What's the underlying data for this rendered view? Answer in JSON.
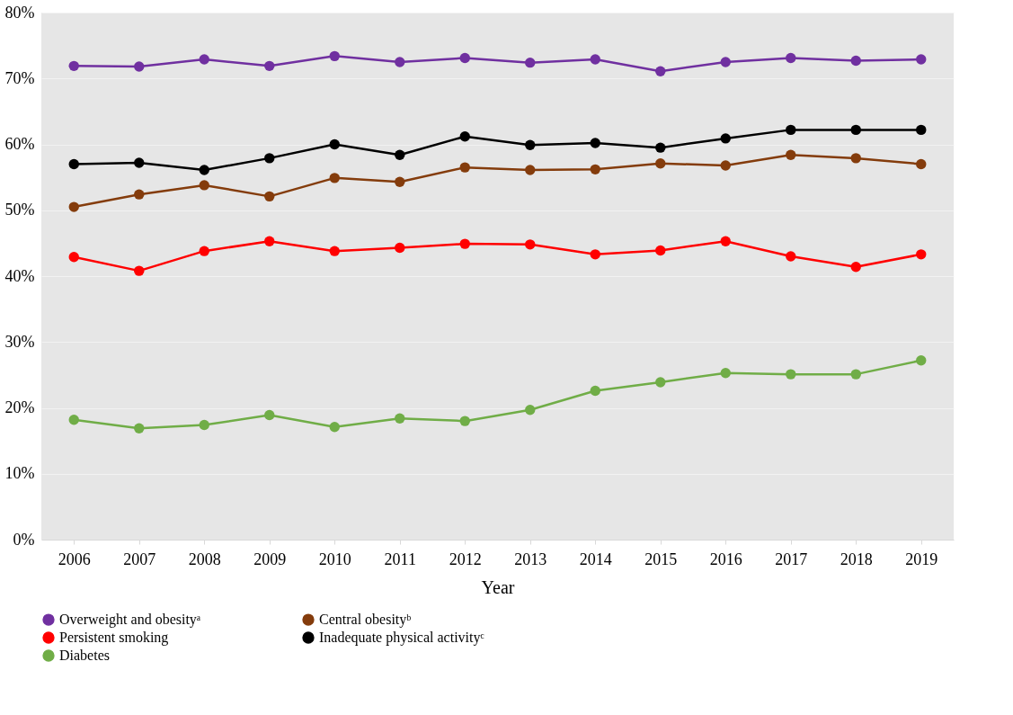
{
  "chart_data": {
    "type": "line",
    "xlabel": "Year",
    "categories": [
      "2006",
      "2007",
      "2008",
      "2009",
      "2010",
      "2011",
      "2012",
      "2013",
      "2014",
      "2015",
      "2016",
      "2017",
      "2018",
      "2019"
    ],
    "series": [
      {
        "name": "Overweight and obesityᵃ",
        "color": "#7030a0",
        "values": [
          71.9,
          71.8,
          72.9,
          71.9,
          73.4,
          72.5,
          73.1,
          72.4,
          72.9,
          71.1,
          72.5,
          73.1,
          72.7,
          72.9
        ]
      },
      {
        "name": "Central obesityᵇ",
        "color": "#843c0c",
        "values": [
          50.5,
          52.4,
          53.8,
          52.1,
          54.9,
          54.3,
          56.5,
          56.1,
          56.2,
          57.1,
          56.8,
          58.4,
          57.9,
          57.0
        ]
      },
      {
        "name": "Persistent smoking",
        "color": "#ff0000",
        "values": [
          42.9,
          40.8,
          43.8,
          45.3,
          43.8,
          44.3,
          44.9,
          44.8,
          43.3,
          43.9,
          45.3,
          43.0,
          41.4,
          43.3
        ]
      },
      {
        "name": "Inadequate physical activityᶜ",
        "color": "#000000",
        "values": [
          57.0,
          57.2,
          56.1,
          57.9,
          60.0,
          58.4,
          61.2,
          59.9,
          60.2,
          59.5,
          60.9,
          62.2,
          62.2,
          62.2
        ]
      },
      {
        "name": "Diabetes",
        "color": "#70ad47",
        "values": [
          18.2,
          16.9,
          17.4,
          18.9,
          17.1,
          18.4,
          18.0,
          19.7,
          22.6,
          23.9,
          25.3,
          25.1,
          25.1,
          27.2
        ]
      }
    ],
    "ylim": [
      0,
      80
    ],
    "yticks": [
      {
        "value": 0,
        "label": "0%"
      },
      {
        "value": 10,
        "label": "10%"
      },
      {
        "value": 20,
        "label": "20%"
      },
      {
        "value": 30,
        "label": "30%"
      },
      {
        "value": 40,
        "label": "40%"
      },
      {
        "value": 50,
        "label": "50%"
      },
      {
        "value": 60,
        "label": "60%"
      },
      {
        "value": 70,
        "label": "70%"
      },
      {
        "value": 80,
        "label": "80%"
      }
    ],
    "grid": "y",
    "legend": "bottom",
    "marker": "circle",
    "line_style": "solid"
  }
}
